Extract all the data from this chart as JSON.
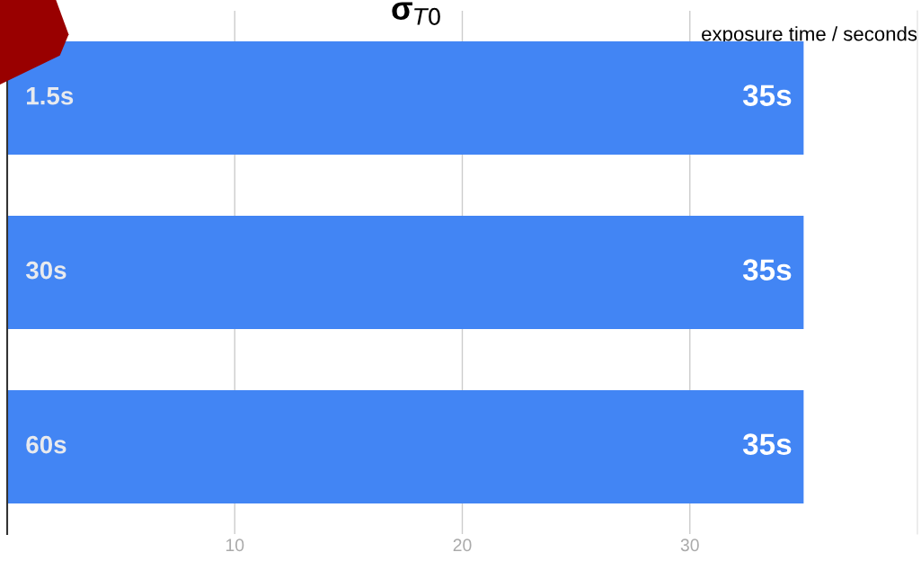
{
  "chart_data": {
    "type": "bar",
    "orientation": "horizontal",
    "title": "σ$_{T0}$",
    "xlabel": "exposure time / seconds",
    "categories": [
      "1.5s",
      "30s",
      "60s"
    ],
    "series": [
      {
        "color": "#4285f4",
        "values": [
          35,
          35,
          35
        ],
        "value_labels": [
          "35s",
          "35s",
          "35s"
        ]
      }
    ],
    "xlim": [
      0,
      40
    ],
    "xticks": [
      10,
      20,
      30
    ],
    "grid": "x",
    "legend": false
  }
}
